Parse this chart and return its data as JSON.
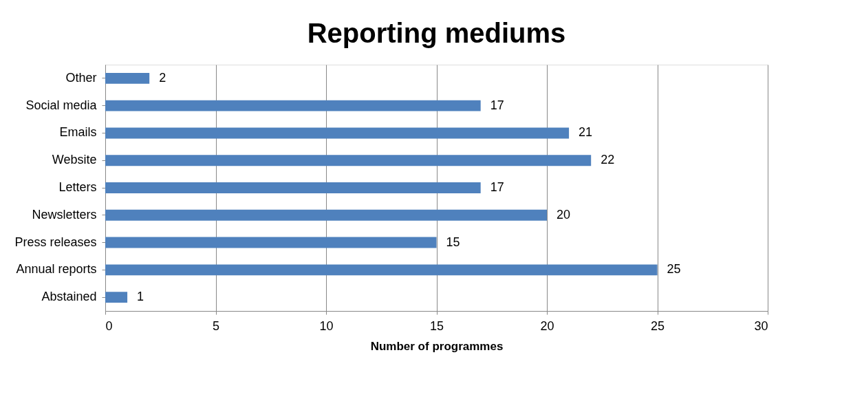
{
  "chart_data": {
    "type": "bar",
    "orientation": "horizontal",
    "title": "Reporting mediums",
    "xlabel": "Number of programmes",
    "categories": [
      "Other",
      "Social media",
      "Emails",
      "Website",
      "Letters",
      "Newsletters",
      "Press releases",
      "Annual reports",
      "Abstained"
    ],
    "values": [
      2,
      17,
      21,
      22,
      17,
      20,
      15,
      25,
      1
    ],
    "color": "#4f81bd",
    "xlim": [
      0,
      30
    ],
    "xticks": [
      0,
      5,
      10,
      15,
      20,
      25,
      30
    ],
    "grid": "x",
    "data_labels": true
  }
}
